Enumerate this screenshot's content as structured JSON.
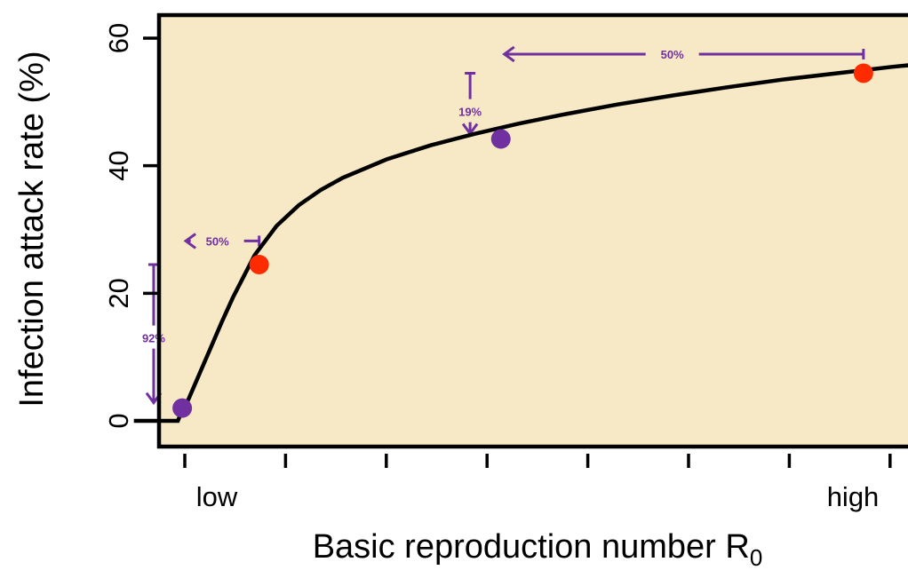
{
  "chart_data": {
    "type": "line",
    "xlabel": "Basic reproduction number R",
    "xlabel_subscript": "0",
    "ylabel": "Infection attack rate (%)",
    "x_tick_labels": {
      "low": "low",
      "high": "high"
    },
    "y_ticks": [
      0,
      20,
      40,
      60
    ],
    "ylim": [
      -4,
      64
    ],
    "xlim": [
      0.55,
      4.15
    ],
    "grid": false,
    "background_color": "#f7e9c6",
    "curve_color": "#000000",
    "series": [
      {
        "x": [
          0.55,
          0.75,
          0.76,
          0.8,
          0.85,
          0.9,
          0.95,
          1.0,
          1.1,
          1.2,
          1.3,
          1.4,
          1.5,
          1.7,
          1.9,
          2.1,
          2.3,
          2.5,
          2.75,
          3.0,
          3.25,
          3.5,
          3.75,
          4.0,
          4.15
        ],
        "values": [
          0,
          0,
          0.8,
          3.5,
          7.5,
          11.5,
          15.5,
          19.3,
          26.0,
          30.6,
          33.8,
          36.2,
          38.1,
          41.0,
          43.2,
          45.0,
          46.6,
          48.0,
          49.6,
          51.0,
          52.3,
          53.5,
          54.5,
          55.5,
          56.0
        ]
      }
    ],
    "points": [
      {
        "x": 0.77,
        "y": 2,
        "color": "#7030a0"
      },
      {
        "x": 1.12,
        "y": 24.5,
        "color": "#ff2b00"
      },
      {
        "x": 2.22,
        "y": 44.2,
        "color": "#7030a0"
      },
      {
        "x": 3.87,
        "y": 54.5,
        "color": "#ff2b00"
      }
    ],
    "annotations": [
      {
        "label": "92%",
        "direction": "down",
        "x": 0.64,
        "y_start": 24.5,
        "y_end": 2,
        "label_y": 13,
        "color": "#7030a0"
      },
      {
        "label": "50%",
        "direction": "left",
        "y": 28.2,
        "x_start": 1.12,
        "x_end": 0.77,
        "label_x": 0.93,
        "color": "#7030a0"
      },
      {
        "label": "19%",
        "direction": "down",
        "x": 2.08,
        "y_start": 54.5,
        "y_end": 44.2,
        "label_y": 48.5,
        "color": "#7030a0"
      },
      {
        "label": "50%",
        "direction": "left",
        "y": 57.5,
        "x_start": 3.87,
        "x_end": 2.22,
        "label_x": 3.0,
        "color": "#7030a0"
      }
    ]
  }
}
